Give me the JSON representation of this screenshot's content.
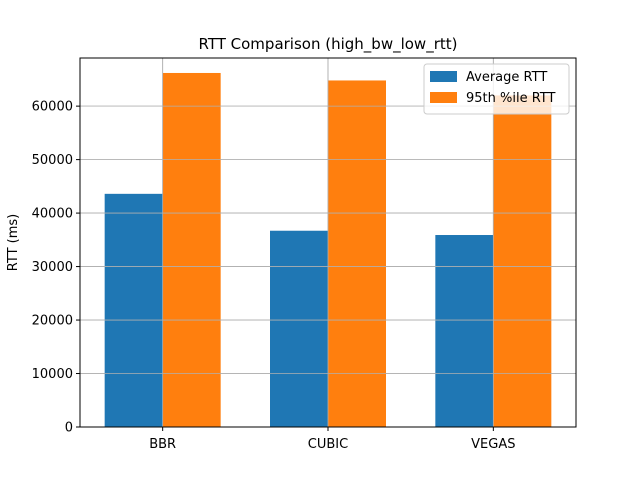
{
  "chart_data": {
    "type": "bar",
    "title": "RTT Comparison (high_bw_low_rtt)",
    "xlabel": "",
    "ylabel": "RTT (ms)",
    "categories": [
      "BBR",
      "CUBIC",
      "VEGAS"
    ],
    "series": [
      {
        "name": "Average RTT",
        "values": [
          43600,
          36700,
          35900
        ],
        "color": "#1f77b4"
      },
      {
        "name": "95th %ile RTT",
        "values": [
          66200,
          64800,
          62000
        ],
        "color": "#ff7f0e"
      }
    ],
    "ylim": [
      0,
      69000
    ],
    "yticks": [
      0,
      10000,
      20000,
      30000,
      40000,
      50000,
      60000
    ],
    "grid": true,
    "legend_position": "top-right"
  }
}
